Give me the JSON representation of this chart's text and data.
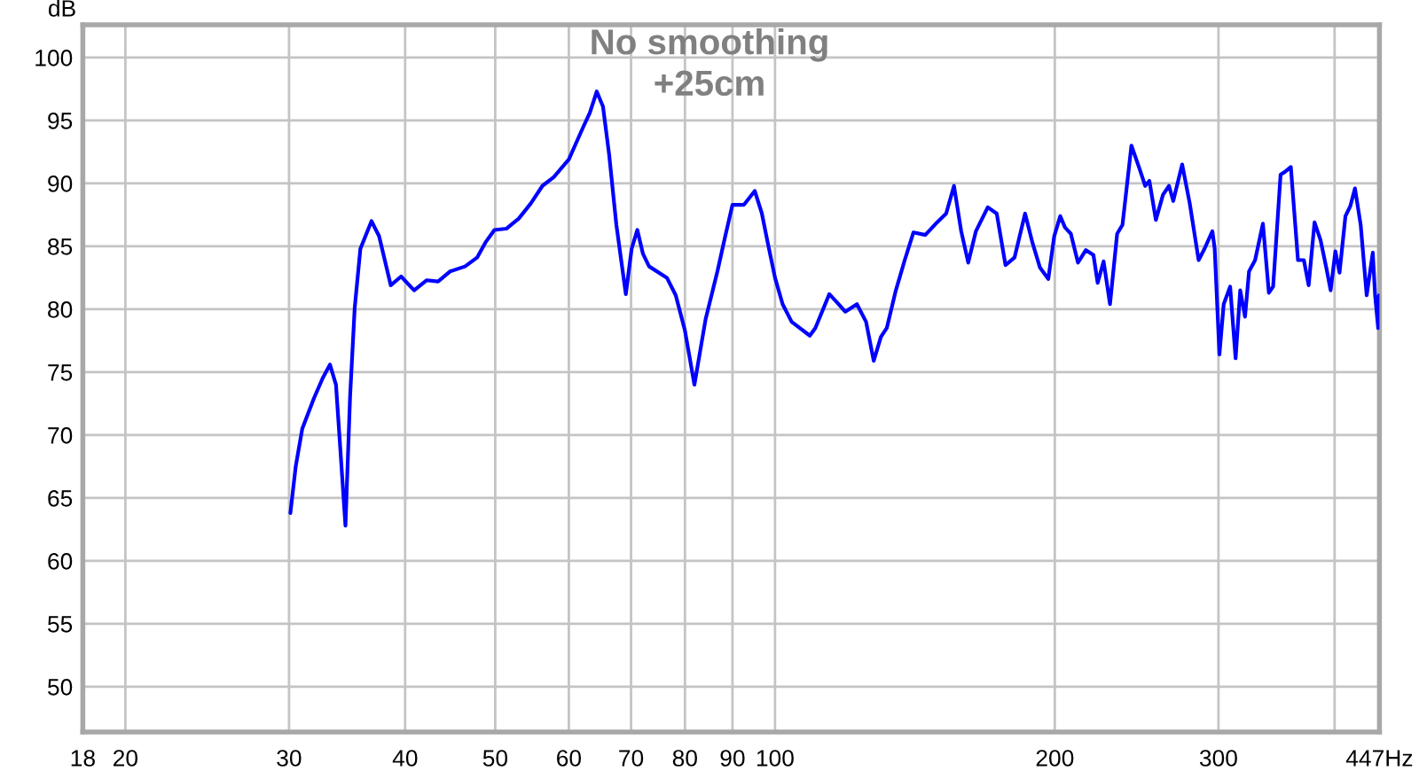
{
  "chart_data": {
    "type": "line",
    "title": "No smoothing\n+25cm",
    "ylabel": "dB",
    "x": [
      30.1,
      30.5,
      31.0,
      31.9,
      32.6,
      33.2,
      33.7,
      34.0,
      34.5,
      34.9,
      35.3,
      35.8,
      36.8,
      37.5,
      38.6,
      39.6,
      40.9,
      42.2,
      43.4,
      44.7,
      46.4,
      47.8,
      48.8,
      49.9,
      51.4,
      53.0,
      54.6,
      56.2,
      57.8,
      60.0,
      62.2,
      63.2,
      64.3,
      65.3,
      66.3,
      67.5,
      69.1,
      70.1,
      71.1,
      72.1,
      73.2,
      76.5,
      78.2,
      80.0,
      81.9,
      84.2,
      86.7,
      88.4,
      90.0,
      92.6,
      95.1,
      96.8,
      98.2,
      100.0,
      101.9,
      104.2,
      109.0,
      110.5,
      114.4,
      116.4,
      119.0,
      122.5,
      125.3,
      127.7,
      130.0,
      131.9,
      134.9,
      137.9,
      140.9,
      145.1,
      149.4,
      152.8,
      155.8,
      158.6,
      161.4,
      164.5,
      169.4,
      173.2,
      177.0,
      181.0,
      185.8,
      189.2,
      192.8,
      196.8,
      199.7,
      202.7,
      205.1,
      208.1,
      211.8,
      216.0,
      220.1,
      222.4,
      225.7,
      229.3,
      233.4,
      236.5,
      241.8,
      246.6,
      250.2,
      252.8,
      256.9,
      261.5,
      265.4,
      268.2,
      274.2,
      279.4,
      285.6,
      289.8,
      295.5,
      297.2,
      300.7,
      303.9,
      308.8,
      313.0,
      316.6,
      320.4,
      323.6,
      328.5,
      334.9,
      339.9,
      343.5,
      349.9,
      353.5,
      358.9,
      365.3,
      370.7,
      375.1,
      380.6,
      386.3,
      392.1,
      396.1,
      400.8,
      404.9,
      410.9,
      415.9,
      420.7,
      426.7,
      433.1,
      439.7,
      442.2,
      445.6,
      446.5
    ],
    "values": [
      63.8,
      67.5,
      70.5,
      72.9,
      74.5,
      75.6,
      74.0,
      69.8,
      62.8,
      73.1,
      80.1,
      84.8,
      87.0,
      85.8,
      81.9,
      82.6,
      81.5,
      82.3,
      82.2,
      83.0,
      83.4,
      84.1,
      85.3,
      86.3,
      86.4,
      87.2,
      88.4,
      89.8,
      90.5,
      91.9,
      94.5,
      95.6,
      97.3,
      96.1,
      92.3,
      86.7,
      81.2,
      84.8,
      86.3,
      84.4,
      83.4,
      82.5,
      81.1,
      78.3,
      74.0,
      79.2,
      83.0,
      85.8,
      88.3,
      88.3,
      89.4,
      87.6,
      85.3,
      82.5,
      80.4,
      79.0,
      77.9,
      78.5,
      81.2,
      80.6,
      79.8,
      80.4,
      79.0,
      75.9,
      77.8,
      78.5,
      81.5,
      83.9,
      86.1,
      85.9,
      86.9,
      87.6,
      89.8,
      86.2,
      83.7,
      86.2,
      88.1,
      87.6,
      83.5,
      84.1,
      87.6,
      85.3,
      83.3,
      82.4,
      85.8,
      87.4,
      86.5,
      86.0,
      83.7,
      84.7,
      84.3,
      82.1,
      83.8,
      80.4,
      86.0,
      86.7,
      93.0,
      91.2,
      89.8,
      90.2,
      87.1,
      89.1,
      89.8,
      88.6,
      91.5,
      88.4,
      83.9,
      84.8,
      86.2,
      84.8,
      76.4,
      80.4,
      81.8,
      76.1,
      81.5,
      79.4,
      83.0,
      83.9,
      86.8,
      81.3,
      81.8,
      90.7,
      90.9,
      91.3,
      83.9,
      83.9,
      81.9,
      86.9,
      85.5,
      83.2,
      81.5,
      84.6,
      82.9,
      87.4,
      88.2,
      89.6,
      86.7,
      81.1,
      84.5,
      81.1,
      78.5,
      81.1
    ],
    "color": "#0000ff",
    "line_style": "solid",
    "log": "x",
    "xlim": [
      18,
      447
    ],
    "ylim": [
      46.4,
      102.6
    ],
    "xticks": [
      18,
      20,
      30,
      40,
      50,
      60,
      70,
      80,
      90,
      100,
      200,
      300,
      {
        "value": 400,
        "label": null
      },
      {
        "value": 447,
        "label": "447Hz"
      }
    ],
    "yticks": [
      50,
      55,
      60,
      65,
      70,
      75,
      80,
      85,
      90,
      95,
      100
    ],
    "grid": true
  }
}
